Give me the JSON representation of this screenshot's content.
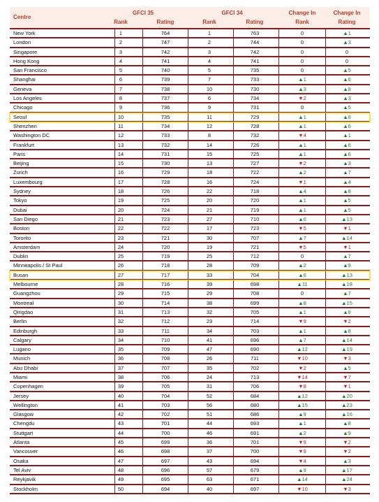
{
  "header": {
    "centre": "Centre",
    "groups": [
      "GFCI 35",
      "GFCI 34",
      "Change In",
      "Change In"
    ],
    "subs": [
      "Rank",
      "Rating",
      "Rank",
      "Rating",
      "Rank",
      "Rating"
    ]
  },
  "table": {
    "rows": [
      [
        "New York",
        1,
        764,
        1,
        763,
        "0",
        "▲1"
      ],
      [
        "London",
        2,
        747,
        2,
        744,
        "0",
        "▲3"
      ],
      [
        "Singapore",
        3,
        742,
        3,
        742,
        "0",
        "0"
      ],
      [
        "Hong Kong",
        4,
        741,
        4,
        741,
        "0",
        "0"
      ],
      [
        "San Francisco",
        5,
        740,
        5,
        735,
        "0",
        "▲5"
      ],
      [
        "Shanghai",
        6,
        739,
        7,
        733,
        "▲1",
        "▲6"
      ],
      [
        "Geneva",
        7,
        738,
        10,
        730,
        "▲3",
        "▲8"
      ],
      [
        "Los Angeles",
        8,
        737,
        6,
        734,
        "▼2",
        "▲3"
      ],
      [
        "Chicago",
        9,
        736,
        9,
        731,
        "0",
        "▲5"
      ],
      [
        "Seoul",
        10,
        735,
        11,
        729,
        "▲1",
        "▲6"
      ],
      [
        "Shenzhen",
        11,
        734,
        12,
        728,
        "▲1",
        "▲6"
      ],
      [
        "Washington DC",
        12,
        733,
        8,
        732,
        "▼4",
        "▲1"
      ],
      [
        "Frankfurt",
        13,
        732,
        14,
        726,
        "▲1",
        "▲6"
      ],
      [
        "Paris",
        14,
        731,
        15,
        725,
        "▲1",
        "▲6"
      ],
      [
        "Beijing",
        15,
        730,
        13,
        727,
        "▼2",
        "▲3"
      ],
      [
        "Zurich",
        16,
        729,
        18,
        722,
        "▲2",
        "▲7"
      ],
      [
        "Luxembourg",
        17,
        728,
        16,
        724,
        "▼1",
        "▲4"
      ],
      [
        "Sydney",
        18,
        726,
        22,
        718,
        "▲4",
        "▲8"
      ],
      [
        "Tokyo",
        19,
        725,
        20,
        720,
        "▲1",
        "▲5"
      ],
      [
        "Dubai",
        20,
        724,
        21,
        719,
        "▲1",
        "▲5"
      ],
      [
        "San Diego",
        21,
        723,
        27,
        710,
        "▲6",
        "▲13"
      ],
      [
        "Boston",
        22,
        722,
        17,
        723,
        "▼5",
        "▼1"
      ],
      [
        "Toronto",
        23,
        721,
        30,
        707,
        "▲7",
        "▲14"
      ],
      [
        "Amsterdam",
        24,
        720,
        19,
        721,
        "▼5",
        "▼1"
      ],
      [
        "Dublin",
        25,
        719,
        25,
        712,
        "0",
        "▲7"
      ],
      [
        "Minneapolis / St Paul",
        26,
        718,
        28,
        709,
        "▲2",
        "▲9"
      ],
      [
        "Busan",
        27,
        717,
        33,
        704,
        "▲6",
        "▲13"
      ],
      [
        "Melbourne",
        28,
        716,
        39,
        698,
        "▲11",
        "▲18"
      ],
      [
        "Guangzhou",
        29,
        715,
        29,
        708,
        "0",
        "▲7"
      ],
      [
        "Montreal",
        30,
        714,
        38,
        699,
        "▲8",
        "▲15"
      ],
      [
        "Qingdao",
        31,
        713,
        32,
        705,
        "▲1",
        "▲8"
      ],
      [
        "Berlin",
        32,
        712,
        23,
        714,
        "▼9",
        "▼2"
      ],
      [
        "Edinburgh",
        33,
        711,
        34,
        703,
        "▲1",
        "▲8"
      ],
      [
        "Calgary",
        34,
        710,
        41,
        696,
        "▲7",
        "▲14"
      ],
      [
        "Lugano",
        35,
        709,
        47,
        690,
        "▲12",
        "▲19"
      ],
      [
        "Munich",
        36,
        708,
        26,
        711,
        "▼10",
        "▼3"
      ],
      [
        "Abu Dhabi",
        37,
        707,
        35,
        702,
        "▼2",
        "▲5"
      ],
      [
        "Miami",
        38,
        706,
        24,
        713,
        "▼14",
        "▼7"
      ],
      [
        "Copenhagen",
        39,
        705,
        31,
        706,
        "▼8",
        "▼1"
      ],
      [
        "Jersey",
        40,
        704,
        52,
        684,
        "▲12",
        "▲20"
      ],
      [
        "Wellington",
        41,
        703,
        56,
        680,
        "▲15",
        "▲23"
      ],
      [
        "Glasgow",
        42,
        702,
        51,
        686,
        "▲9",
        "▲16"
      ],
      [
        "Chengdu",
        43,
        701,
        44,
        693,
        "▲1",
        "▲8"
      ],
      [
        "Stuttgart",
        44,
        700,
        46,
        691,
        "▲2",
        "▲9"
      ],
      [
        "Atlanta",
        45,
        699,
        36,
        701,
        "▼9",
        "▼2"
      ],
      [
        "Vancouver",
        46,
        698,
        37,
        700,
        "▼9",
        "▼2"
      ],
      [
        "Osaka",
        47,
        697,
        43,
        694,
        "▼4",
        "▲3"
      ],
      [
        "Tel Aviv",
        48,
        696,
        57,
        679,
        "▲9",
        "▲17"
      ],
      [
        "Reykjavik",
        49,
        695,
        63,
        671,
        "▲14",
        "▲24"
      ],
      [
        "Stockholm",
        50,
        694,
        40,
        697,
        "▼10",
        "▼3"
      ]
    ]
  }
}
